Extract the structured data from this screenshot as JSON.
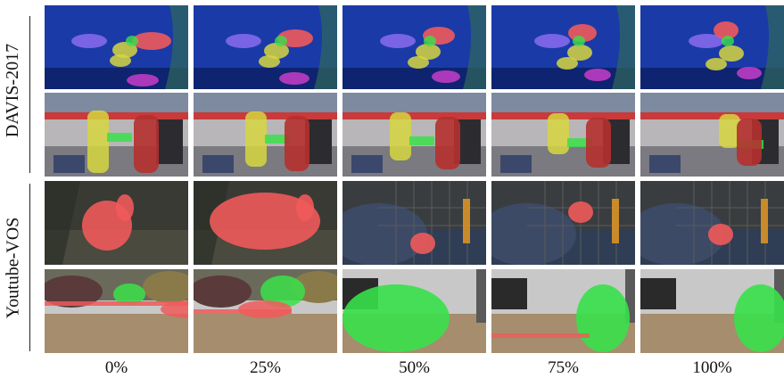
{
  "group_labels": {
    "davis": "DAVIS-2017",
    "youtube": "Youtube-VOS"
  },
  "column_labels": [
    "0%",
    "25%",
    "50%",
    "75%",
    "100%"
  ],
  "colors": {
    "mask_red": "#f05a5a",
    "mask_yellow": "#d6d640",
    "mask_green": "#39e04a",
    "mask_magenta": "#c83cc8",
    "mask_purple": "#8a6cf0",
    "water": "#1a3aa8",
    "store": "#b8b6b8",
    "rabbit_bg": "#3a3a35",
    "cage_bg": "#3a3d40",
    "floor": "#a68d6e",
    "wall": "#c8c8c8"
  },
  "rows": [
    {
      "name": "davis-fish",
      "scene": "fish"
    },
    {
      "name": "davis-shoppers",
      "scene": "shop"
    },
    {
      "name": "youtube-rabbit",
      "scene": "rabbit"
    },
    {
      "name": "youtube-cat",
      "scene": "cat"
    }
  ]
}
